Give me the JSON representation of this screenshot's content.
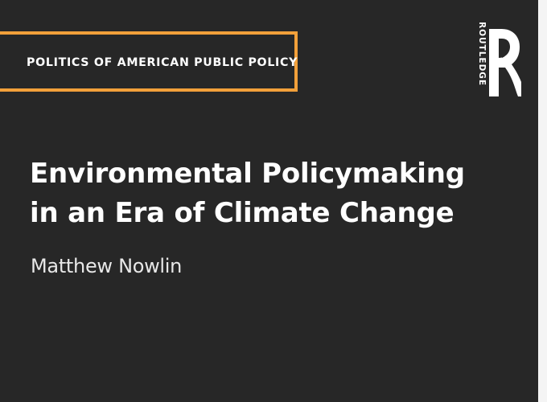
{
  "book": {
    "series": "POLITICS OF AMERICAN PUBLIC POLICY",
    "title_line_1": "Environmental Policymaking",
    "title_line_2": "in an Era of Climate Change",
    "author": "Matthew Nowlin",
    "publisher": "ROUTLEDGE"
  },
  "colors": {
    "background": "#272727",
    "accent": "#f2a03a",
    "text": "#ffffff"
  },
  "icons": {
    "publisher_logo": "routledge-logo-icon"
  }
}
